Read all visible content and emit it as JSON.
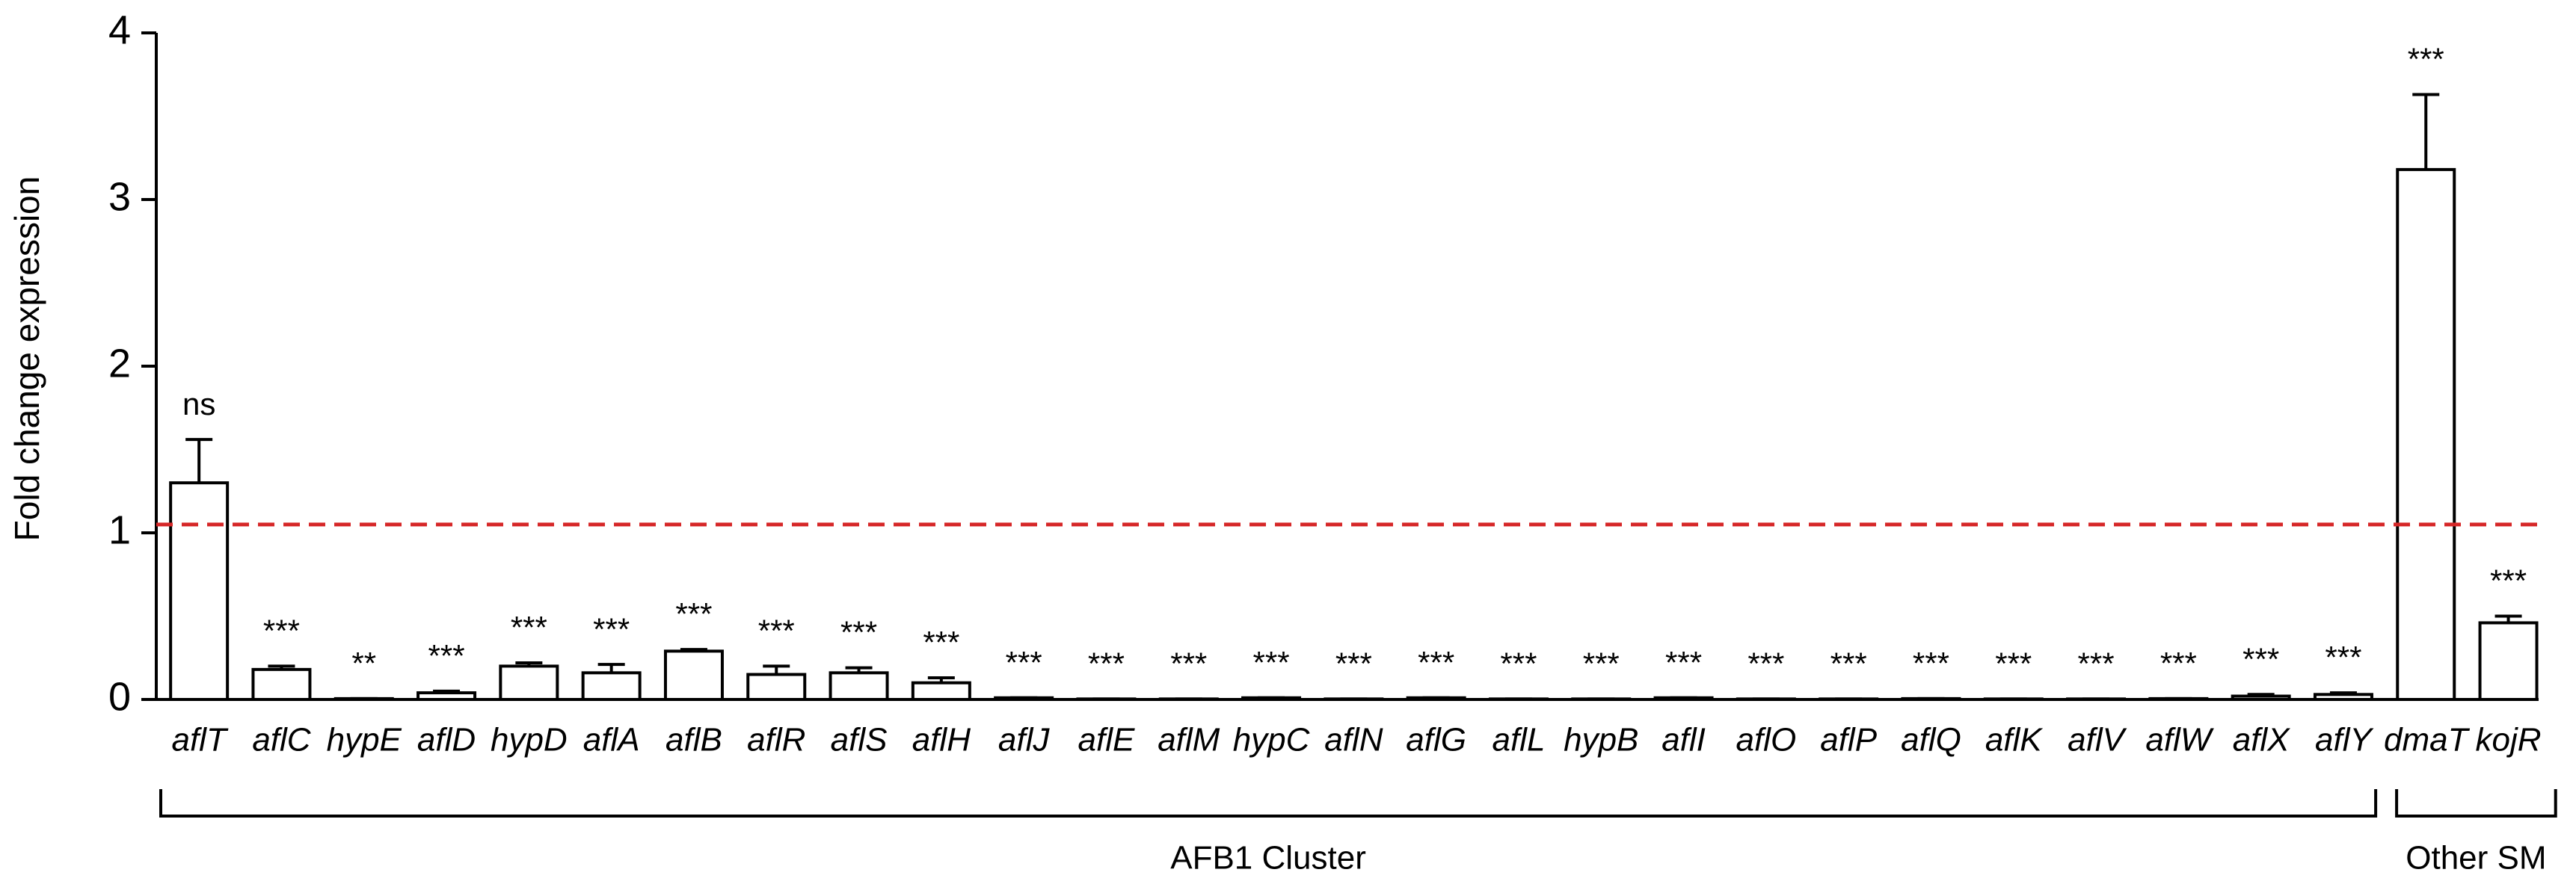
{
  "chart_data": {
    "type": "bar",
    "y_label": "Fold change expression",
    "categories": [
      "aflT",
      "aflC",
      "hypE",
      "aflD",
      "hypD",
      "aflA",
      "aflB",
      "aflR",
      "aflS",
      "aflH",
      "aflJ",
      "aflE",
      "aflM",
      "hypC",
      "aflN",
      "aflG",
      "aflL",
      "hypB",
      "aflI",
      "aflO",
      "aflP",
      "aflQ",
      "aflK",
      "aflV",
      "aflW",
      "aflX",
      "aflY",
      "dmaT",
      "kojR"
    ],
    "series": [
      {
        "values": [
          1.3,
          0.18,
          0.005,
          0.04,
          0.2,
          0.16,
          0.29,
          0.15,
          0.16,
          0.1,
          0.01,
          0.003,
          0.003,
          0.01,
          0.003,
          0.01,
          0.003,
          0.003,
          0.01,
          0.003,
          0.003,
          0.005,
          0.003,
          0.003,
          0.005,
          0.02,
          0.03,
          3.18,
          0.46
        ],
        "errors": [
          0.26,
          0.02,
          0,
          0.01,
          0.02,
          0.05,
          0.01,
          0.05,
          0.03,
          0.03,
          0,
          0,
          0,
          0,
          0,
          0,
          0,
          0,
          0,
          0,
          0,
          0,
          0,
          0,
          0,
          0.01,
          0.01,
          0.45,
          0.04
        ],
        "color": "#ffffff",
        "edge_color": "#000000"
      }
    ],
    "significance": [
      "ns",
      "***",
      "**",
      "***",
      "***",
      "***",
      "***",
      "***",
      "***",
      "***",
      "***",
      "***",
      "***",
      "***",
      "***",
      "***",
      "***",
      "***",
      "***",
      "***",
      "***",
      "***",
      "***",
      "***",
      "***",
      "***",
      "***",
      "***",
      "***"
    ],
    "reference_line": {
      "value": 1.05,
      "color": "#d62728",
      "style": "dashed"
    },
    "groups": [
      {
        "label": "AFB1 Cluster",
        "count": 27
      },
      {
        "label": "Other SM",
        "count": 2
      }
    ],
    "ylim": [
      0,
      4
    ],
    "yticks": [
      0,
      1,
      2,
      3,
      4
    ]
  }
}
